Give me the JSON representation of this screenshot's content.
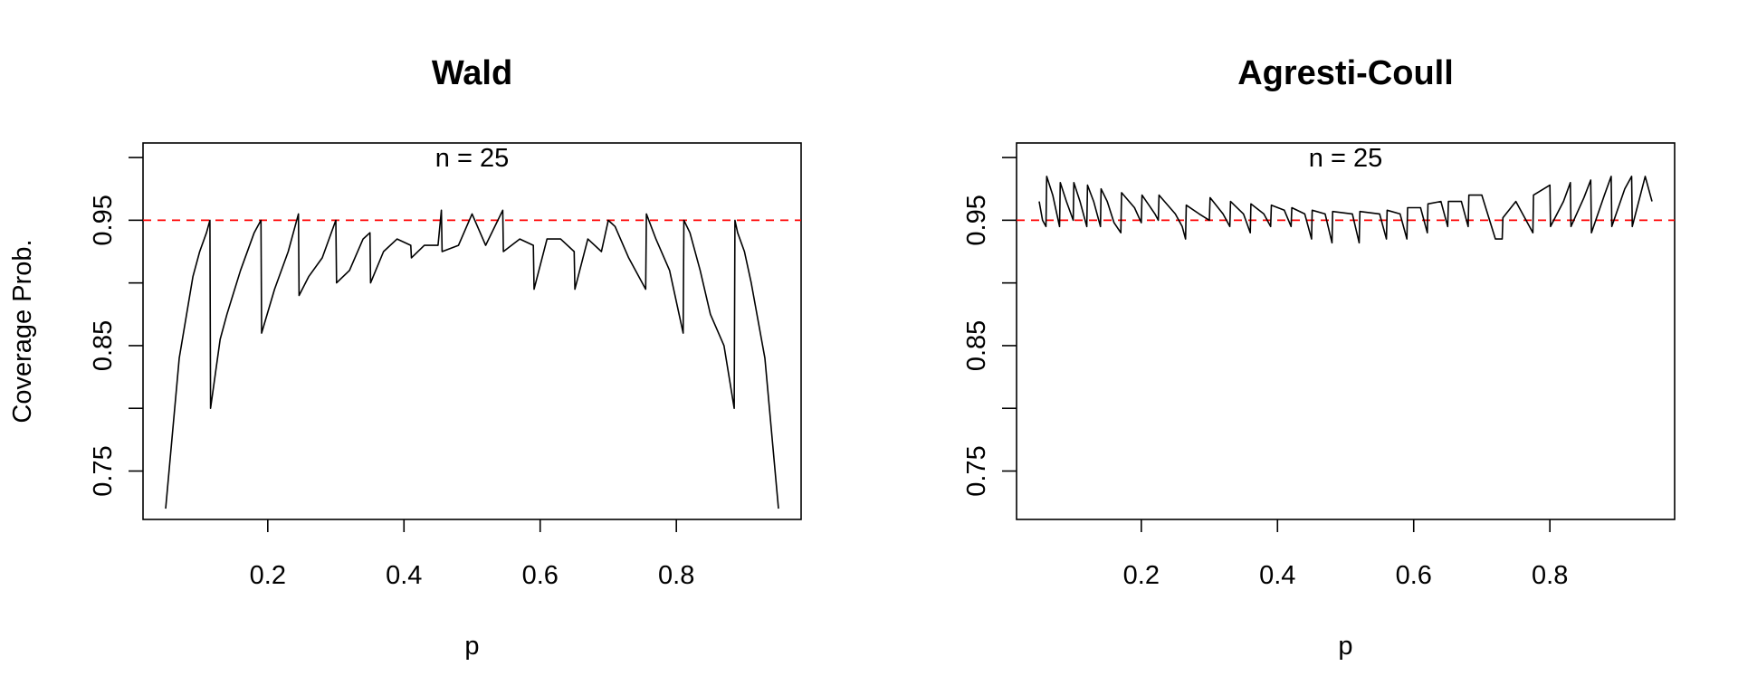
{
  "figure": {
    "ylabel": "Coverage Prob.",
    "colors": {
      "curve": "#000000",
      "reference_line": "#ff0000",
      "frame": "#000000"
    }
  },
  "chart_data": [
    {
      "type": "line",
      "title": "Wald",
      "annotation": "n = 25",
      "xlabel": "p",
      "ylabel": "Coverage Prob.",
      "n": 25,
      "xlim": [
        0.0168,
        0.9832
      ],
      "ylim": [
        0.7114,
        1.0116
      ],
      "x_ticks": [
        0.2,
        0.4,
        0.6,
        0.8
      ],
      "x_tick_labels": [
        "0.2",
        "0.4",
        "0.6",
        "0.8"
      ],
      "y_ticks": [
        0.75,
        0.8,
        0.85,
        0.9,
        0.95,
        1.0
      ],
      "y_tick_labels": [
        "0.75",
        "",
        "0.85",
        "",
        "0.95",
        ""
      ],
      "reference_line": {
        "y": 0.95,
        "style": "dashed",
        "color": "#ff0000"
      },
      "series": [
        {
          "x": [
            0.05,
            0.07,
            0.09,
            0.1,
            0.11,
            0.115,
            0.116,
            0.13,
            0.14,
            0.16,
            0.18,
            0.19,
            0.191,
            0.21,
            0.23,
            0.245,
            0.246,
            0.26,
            0.28,
            0.29,
            0.3,
            0.301,
            0.32,
            0.34,
            0.35,
            0.351,
            0.37,
            0.39,
            0.41,
            0.411,
            0.43,
            0.45,
            0.455,
            0.456,
            0.48,
            0.5,
            0.52,
            0.545,
            0.546,
            0.57,
            0.59,
            0.591,
            0.61,
            0.63,
            0.65,
            0.651,
            0.67,
            0.69,
            0.7,
            0.71,
            0.73,
            0.755,
            0.756,
            0.77,
            0.79,
            0.81,
            0.811,
            0.82,
            0.835,
            0.85,
            0.87,
            0.885,
            0.886,
            0.89,
            0.9,
            0.91,
            0.93,
            0.95
          ],
          "y": [
            0.72,
            0.84,
            0.905,
            0.925,
            0.94,
            0.95,
            0.8,
            0.855,
            0.875,
            0.91,
            0.94,
            0.95,
            0.86,
            0.895,
            0.925,
            0.955,
            0.89,
            0.905,
            0.92,
            0.935,
            0.95,
            0.9,
            0.91,
            0.935,
            0.94,
            0.9,
            0.925,
            0.935,
            0.93,
            0.92,
            0.93,
            0.93,
            0.958,
            0.925,
            0.93,
            0.955,
            0.93,
            0.958,
            0.925,
            0.935,
            0.93,
            0.895,
            0.935,
            0.935,
            0.925,
            0.895,
            0.935,
            0.925,
            0.95,
            0.945,
            0.92,
            0.895,
            0.955,
            0.935,
            0.91,
            0.86,
            0.95,
            0.94,
            0.91,
            0.875,
            0.85,
            0.8,
            0.95,
            0.94,
            0.925,
            0.9,
            0.84,
            0.72
          ]
        }
      ]
    },
    {
      "type": "line",
      "title": "Agresti-Coull",
      "annotation": "n = 25",
      "xlabel": "p",
      "ylabel": "",
      "n": 25,
      "xlim": [
        0.0168,
        0.9832
      ],
      "ylim": [
        0.7114,
        1.0116
      ],
      "x_ticks": [
        0.2,
        0.4,
        0.6,
        0.8
      ],
      "x_tick_labels": [
        "0.2",
        "0.4",
        "0.6",
        "0.8"
      ],
      "y_ticks": [
        0.75,
        0.8,
        0.85,
        0.9,
        0.95,
        1.0
      ],
      "y_tick_labels": [
        "0.75",
        "",
        "0.85",
        "",
        "0.95",
        ""
      ],
      "reference_line": {
        "y": 0.95,
        "style": "dashed",
        "color": "#ff0000"
      },
      "series": [
        {
          "x": [
            0.05,
            0.055,
            0.06,
            0.061,
            0.07,
            0.08,
            0.081,
            0.09,
            0.1,
            0.101,
            0.11,
            0.12,
            0.121,
            0.13,
            0.14,
            0.141,
            0.15,
            0.16,
            0.17,
            0.171,
            0.19,
            0.2,
            0.201,
            0.22,
            0.225,
            0.226,
            0.25,
            0.26,
            0.265,
            0.266,
            0.285,
            0.3,
            0.301,
            0.32,
            0.33,
            0.331,
            0.35,
            0.36,
            0.361,
            0.38,
            0.39,
            0.391,
            0.41,
            0.42,
            0.421,
            0.44,
            0.45,
            0.451,
            0.47,
            0.48,
            0.481,
            0.51,
            0.52,
            0.521,
            0.55,
            0.56,
            0.561,
            0.58,
            0.59,
            0.591,
            0.61,
            0.62,
            0.621,
            0.64,
            0.65,
            0.651,
            0.67,
            0.68,
            0.681,
            0.7,
            0.72,
            0.73,
            0.731,
            0.75,
            0.775,
            0.776,
            0.8,
            0.801,
            0.82,
            0.83,
            0.831,
            0.85,
            0.86,
            0.861,
            0.88,
            0.89,
            0.891,
            0.91,
            0.92,
            0.921,
            0.94,
            0.95
          ],
          "y": [
            0.965,
            0.95,
            0.945,
            0.985,
            0.97,
            0.945,
            0.98,
            0.965,
            0.95,
            0.98,
            0.965,
            0.945,
            0.978,
            0.965,
            0.945,
            0.975,
            0.965,
            0.948,
            0.94,
            0.972,
            0.96,
            0.948,
            0.97,
            0.955,
            0.95,
            0.97,
            0.955,
            0.945,
            0.935,
            0.962,
            0.955,
            0.95,
            0.968,
            0.955,
            0.945,
            0.965,
            0.955,
            0.94,
            0.963,
            0.955,
            0.945,
            0.962,
            0.958,
            0.945,
            0.96,
            0.955,
            0.935,
            0.958,
            0.955,
            0.932,
            0.957,
            0.955,
            0.932,
            0.957,
            0.955,
            0.935,
            0.958,
            0.955,
            0.935,
            0.96,
            0.96,
            0.94,
            0.963,
            0.965,
            0.945,
            0.965,
            0.965,
            0.945,
            0.97,
            0.97,
            0.935,
            0.935,
            0.952,
            0.965,
            0.94,
            0.97,
            0.978,
            0.945,
            0.965,
            0.98,
            0.945,
            0.968,
            0.982,
            0.94,
            0.97,
            0.985,
            0.945,
            0.975,
            0.985,
            0.945,
            0.985,
            0.965
          ]
        }
      ]
    }
  ]
}
